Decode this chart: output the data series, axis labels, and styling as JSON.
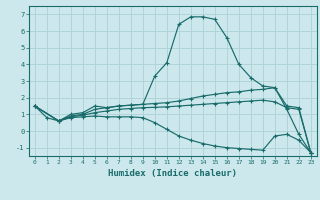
{
  "xlabel": "Humidex (Indice chaleur)",
  "bg_color": "#cce8ec",
  "grid_color": "#b0d4d8",
  "line_color": "#1a6b6b",
  "xlim": [
    -0.5,
    23.5
  ],
  "ylim": [
    -1.5,
    7.5
  ],
  "yticks": [
    -1,
    0,
    1,
    2,
    3,
    4,
    5,
    6,
    7
  ],
  "xticks": [
    0,
    1,
    2,
    3,
    4,
    5,
    6,
    7,
    8,
    9,
    10,
    11,
    12,
    13,
    14,
    15,
    16,
    17,
    18,
    19,
    20,
    21,
    22,
    23
  ],
  "line1_x": [
    0,
    1,
    2,
    3,
    4,
    5,
    6,
    7,
    8,
    9,
    10,
    11,
    12,
    13,
    14,
    15,
    16,
    17,
    18,
    19,
    20,
    21,
    22,
    23
  ],
  "line1_y": [
    1.5,
    0.8,
    0.6,
    1.0,
    1.1,
    1.5,
    1.4,
    1.5,
    1.55,
    1.6,
    3.3,
    4.1,
    6.4,
    6.85,
    6.85,
    6.7,
    5.6,
    4.0,
    3.2,
    2.7,
    2.6,
    1.3,
    -0.2,
    -1.3
  ],
  "line2_x": [
    0,
    2,
    3,
    4,
    5,
    6,
    7,
    8,
    9,
    10,
    11,
    12,
    13,
    14,
    15,
    16,
    17,
    18,
    19,
    20,
    21,
    22,
    23
  ],
  "line2_y": [
    1.5,
    0.6,
    0.9,
    1.0,
    1.3,
    1.4,
    1.5,
    1.55,
    1.6,
    1.65,
    1.7,
    1.8,
    1.95,
    2.1,
    2.2,
    2.3,
    2.35,
    2.45,
    2.5,
    2.6,
    1.5,
    1.4,
    -1.3
  ],
  "line3_x": [
    0,
    2,
    3,
    4,
    5,
    6,
    7,
    8,
    9,
    10,
    11,
    12,
    13,
    14,
    15,
    16,
    17,
    18,
    19,
    20,
    21,
    22,
    23
  ],
  "line3_y": [
    1.5,
    0.6,
    0.85,
    0.95,
    1.1,
    1.2,
    1.3,
    1.35,
    1.4,
    1.42,
    1.45,
    1.5,
    1.55,
    1.6,
    1.65,
    1.7,
    1.75,
    1.8,
    1.85,
    1.75,
    1.4,
    1.3,
    -1.3
  ],
  "line4_x": [
    0,
    2,
    3,
    4,
    5,
    6,
    7,
    8,
    9,
    10,
    11,
    12,
    13,
    14,
    15,
    16,
    17,
    18,
    19,
    20,
    21,
    22,
    23
  ],
  "line4_y": [
    1.5,
    0.6,
    0.8,
    0.85,
    0.9,
    0.85,
    0.85,
    0.85,
    0.8,
    0.5,
    0.1,
    -0.3,
    -0.55,
    -0.75,
    -0.9,
    -1.0,
    -1.05,
    -1.1,
    -1.15,
    -0.3,
    -0.2,
    -0.55,
    -1.3
  ]
}
